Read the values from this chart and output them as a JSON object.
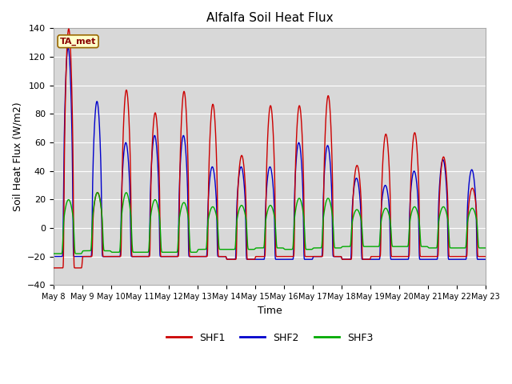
{
  "title": "Alfalfa Soil Heat Flux",
  "xlabel": "Time",
  "ylabel": "Soil Heat Flux (W/m2)",
  "ylim": [
    -40,
    140
  ],
  "yticks": [
    -40,
    -20,
    0,
    20,
    40,
    60,
    80,
    100,
    120,
    140
  ],
  "series_colors": [
    "#cc0000",
    "#0000cc",
    "#00aa00"
  ],
  "series_labels": [
    "SHF1",
    "SHF2",
    "SHF3"
  ],
  "annotation_text": "TA_met",
  "annotation_bg": "#ffffcc",
  "annotation_edge": "#996600",
  "plot_bg": "#d8d8d8",
  "grid_color": "#ffffff",
  "n_days": 15,
  "start_day": 8,
  "linewidth": 1.0,
  "figsize": [
    6.4,
    4.8
  ],
  "dpi": 100
}
